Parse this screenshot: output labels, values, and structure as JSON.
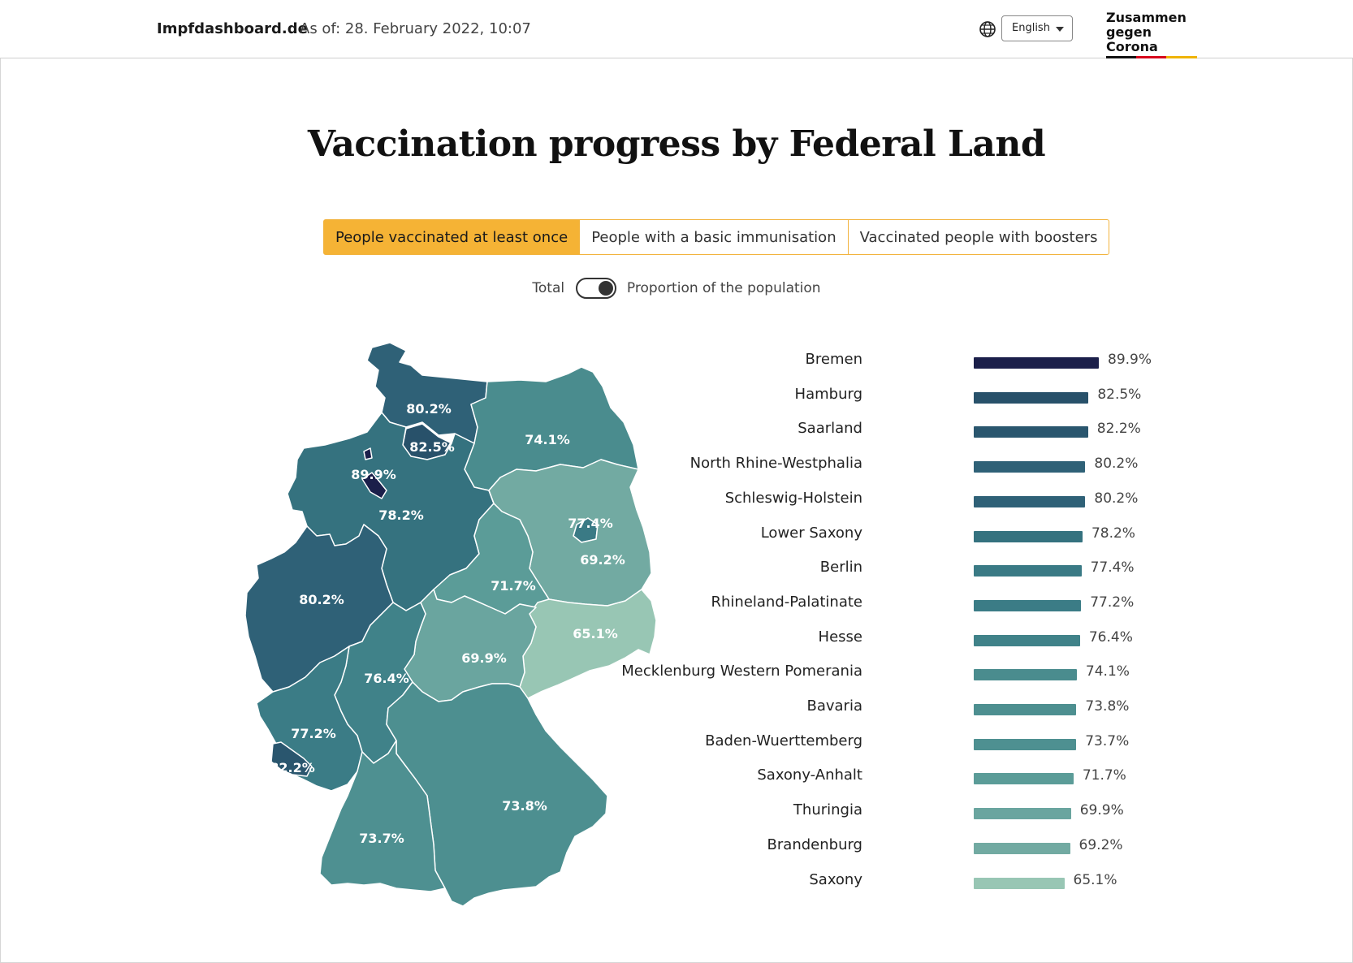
{
  "header": {
    "brand": "Impfdashboard.de",
    "as_of": "As of: 28. February 2022, 10:07",
    "globe_icon": "globe-icon",
    "language": "English",
    "logo_line1": "Zusammen",
    "logo_line2": "gegen Corona"
  },
  "title": "Vaccination progress by Federal Land",
  "tabs": [
    {
      "label": "People vaccinated at least once",
      "active": true
    },
    {
      "label": "People with a basic immunisation",
      "active": false
    },
    {
      "label": "Vaccinated people with boosters",
      "active": false
    }
  ],
  "toggle": {
    "left_label": "Total",
    "right_label": "Proportion of the population",
    "state": "right"
  },
  "map_labels": {
    "schleswig_holstein": "80.2%",
    "hamburg": "82.5%",
    "bremen": "89.9%",
    "mecklenburg": "74.1%",
    "lower_saxony": "78.2%",
    "berlin": "77.4%",
    "brandenburg": "69.2%",
    "saxony_anhalt": "71.7%",
    "nrw": "80.2%",
    "saxony": "65.1%",
    "thuringia": "69.9%",
    "hesse": "76.4%",
    "rhineland_palatinate": "77.2%",
    "saarland": "82.2%",
    "bavaria": "73.8%",
    "baden_wuerttemberg": "73.7%"
  },
  "chart_data": {
    "type": "bar",
    "orientation": "horizontal",
    "categories": [
      "Bremen",
      "Hamburg",
      "Saarland",
      "North Rhine-Westphalia",
      "Schleswig-Holstein",
      "Lower Saxony",
      "Berlin",
      "Rhineland-Palatinate",
      "Hesse",
      "Mecklenburg Western Pomerania",
      "Bavaria",
      "Baden-Wuerttemberg",
      "Saxony-Anhalt",
      "Thuringia",
      "Brandenburg",
      "Saxony"
    ],
    "values": [
      89.9,
      82.5,
      82.2,
      80.2,
      80.2,
      78.2,
      77.4,
      77.2,
      76.4,
      74.1,
      73.8,
      73.7,
      71.7,
      69.9,
      69.2,
      65.1
    ],
    "value_labels": [
      "89.9%",
      "82.5%",
      "82.2%",
      "80.2%",
      "80.2%",
      "78.2%",
      "77.4%",
      "77.2%",
      "76.4%",
      "74.1%",
      "73.8%",
      "73.7%",
      "71.7%",
      "69.9%",
      "69.2%",
      "65.1%"
    ],
    "colors": [
      "#1b1f4a",
      "#28516a",
      "#2a566e",
      "#2f6177",
      "#2f6177",
      "#35727f",
      "#3a7a85",
      "#3b7c86",
      "#408289",
      "#4a8c8e",
      "#4d8f90",
      "#4e9091",
      "#5b9c98",
      "#6aa59f",
      "#72aaa2",
      "#98c6b4"
    ],
    "unit": "%"
  }
}
